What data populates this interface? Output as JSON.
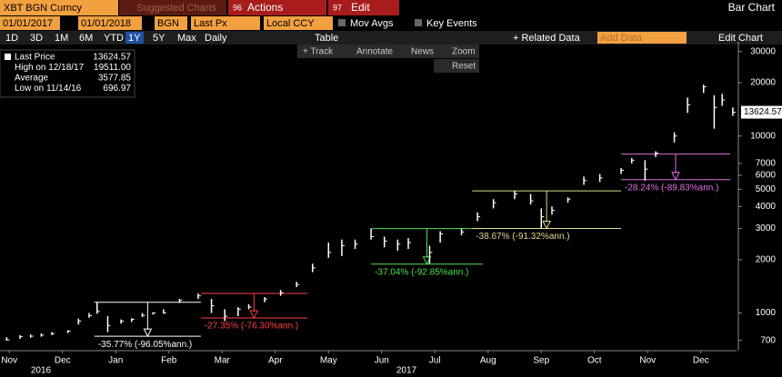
{
  "toolbar": {
    "security": "XBT BGN Curncy",
    "suggested": "Suggested Charts",
    "actions_num": "96",
    "actions": "Actions",
    "edit_num": "97",
    "edit": "Edit",
    "chart_kind": "Bar Chart",
    "start_date": "01/01/2017",
    "end_date": "01/01/2018",
    "source": "BGN",
    "field": "Last Px",
    "currency": "Local CCY",
    "mov_avgs": "Mov Avgs",
    "key_events": "Key Events",
    "periods": [
      "1D",
      "3D",
      "1M",
      "6M",
      "YTD",
      "1Y",
      "5Y",
      "Max"
    ],
    "frequency": "Daily",
    "table": "Table",
    "related": "+ Related Data",
    "add_data": "Add Data",
    "edit_chart": "Edit Chart",
    "tools": [
      "+ Track",
      "Annotate",
      "News",
      "Zoom",
      "Reset"
    ]
  },
  "chart_data": {
    "type": "ohlc",
    "log_scale": true,
    "color": "#ffffff",
    "legend": [
      {
        "label": "Last Price",
        "value": 13624.57
      },
      {
        "label": "High on 12/18/17",
        "value": 19511,
        "value_label": "19511.00"
      },
      {
        "label": "Average",
        "value": 3577.85
      },
      {
        "label": "Low on 11/14/16",
        "value": 696.97
      }
    ],
    "x": [
      0.45,
      0.7,
      0.9,
      1.1,
      1.3,
      1.6,
      1.8,
      2.0,
      2.15,
      2.35,
      2.6,
      2.8,
      3.0,
      3.2,
      3.4,
      3.7,
      4.05,
      4.3,
      4.55,
      4.8,
      5.0,
      5.3,
      5.6,
      5.9,
      6.2,
      6.5,
      6.75,
      7.0,
      7.3,
      7.55,
      7.8,
      8.0,
      8.4,
      8.6,
      9.0,
      9.3,
      9.6,
      10.0,
      10.3,
      10.5,
      10.7,
      11.0,
      11.3,
      11.6,
      12.0,
      12.2,
      12.45,
      12.65,
      13.0,
      13.25,
      13.55,
      13.75,
      13.9,
      14.1
    ],
    "high": [
      730,
      750,
      755,
      765,
      780,
      800,
      930,
      1000,
      1150,
      960,
      920,
      935,
      1000,
      1010,
      1050,
      1200,
      1290,
      1200,
      1050,
      1080,
      1120,
      1230,
      1350,
      1500,
      1900,
      2500,
      2600,
      2600,
      3000,
      2700,
      2600,
      2650,
      2400,
      2900,
      3000,
      3700,
      4400,
      4900,
      4700,
      3900,
      4000,
      4500,
      5900,
      6100,
      6600,
      7500,
      7300,
      8200,
      10500,
      16500,
      19511,
      17000,
      17300,
      14500
    ],
    "low": [
      697,
      715,
      725,
      735,
      750,
      770,
      860,
      940,
      990,
      780,
      870,
      890,
      950,
      980,
      990,
      1140,
      1200,
      1000,
      900,
      960,
      1050,
      1150,
      1250,
      1400,
      1700,
      2050,
      2100,
      2300,
      2600,
      2350,
      2250,
      2300,
      1900,
      2500,
      2750,
      3300,
      3900,
      4400,
      4100,
      3000,
      3600,
      4200,
      5300,
      5500,
      6100,
      7000,
      5600,
      7600,
      9200,
      13500,
      17500,
      11000,
      14800,
      13000
    ],
    "close": [
      705,
      735,
      740,
      750,
      765,
      790,
      900,
      965,
      1020,
      850,
      900,
      920,
      970,
      1000,
      1000,
      1180,
      1250,
      1100,
      960,
      1050,
      1080,
      1200,
      1300,
      1450,
      1800,
      2200,
      2400,
      2450,
      2700,
      2550,
      2450,
      2500,
      2200,
      2800,
      2870,
      3500,
      4200,
      4700,
      4300,
      3500,
      3800,
      4400,
      5600,
      5800,
      6400,
      7300,
      6500,
      8000,
      10000,
      15000,
      19000,
      14500,
      16000,
      13624.57
    ],
    "xlim": [
      0.325,
      14.17
    ],
    "xticks": [
      {
        "value": 0.5,
        "label": "Nov"
      },
      {
        "value": 1.5,
        "label": "Dec"
      },
      {
        "value": 2.5,
        "label": "Jan"
      },
      {
        "value": 3.5,
        "label": "Feb"
      },
      {
        "value": 4.5,
        "label": "Mar"
      },
      {
        "value": 5.5,
        "label": "Apr"
      },
      {
        "value": 6.5,
        "label": "May"
      },
      {
        "value": 7.5,
        "label": "Jun"
      },
      {
        "value": 8.5,
        "label": "Jul"
      },
      {
        "value": 9.5,
        "label": "Aug"
      },
      {
        "value": 10.5,
        "label": "Sep"
      },
      {
        "value": 11.5,
        "label": "Oct"
      },
      {
        "value": 12.5,
        "label": "Nov"
      },
      {
        "value": 13.5,
        "label": "Dec"
      }
    ],
    "years": [
      "2016",
      "2017"
    ],
    "ylim": [
      620,
      32500
    ],
    "yticks": [
      700,
      1000,
      2000,
      3000,
      4000,
      5000,
      6000,
      7000,
      10000,
      20000,
      30000
    ],
    "annotations": [
      {
        "text": "-35.77% (-96.05%ann.)",
        "color": "#ffffff",
        "x": [
          2.1,
          4.1
        ],
        "high": 1150,
        "low": 739
      },
      {
        "text": "-27.35% (-76.30%ann.)",
        "color": "#ff4040",
        "x": [
          4.1,
          6.1
        ],
        "high": 1290,
        "low": 937
      },
      {
        "text": "-37.04% (-92.85%ann.)",
        "color": "#50e050",
        "x": [
          7.3,
          9.4
        ],
        "high": 3000,
        "low": 1889
      },
      {
        "text": "-38.67% (-91.32%ann.)",
        "color": "#e0d890",
        "x": [
          9.2,
          12.0
        ],
        "high": 4900,
        "low": 3005
      },
      {
        "text": "-28.24% (-89.83%ann.)",
        "color": "#e070e0",
        "x": [
          12.0,
          14.05
        ],
        "high": 7900,
        "low": 5669
      }
    ]
  }
}
